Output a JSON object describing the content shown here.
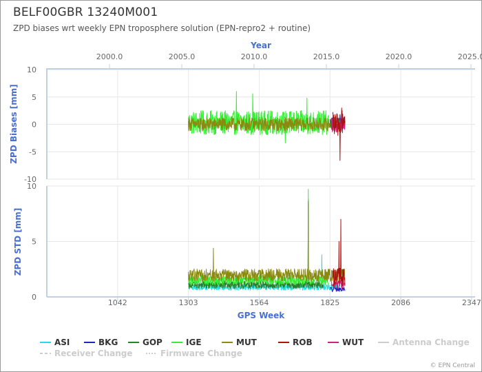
{
  "header": {
    "title": "BELF00GBR 13240M001",
    "subtitle": "ZPD biases wrt weekly EPN troposphere solution (EPN-repro2 + routine)"
  },
  "credit": "© EPN Central",
  "colors": {
    "axis_title": "#4a6fd4",
    "axis_line": "#c0d0e0",
    "grid": "#e6e6e6",
    "tick_text": "#666666"
  },
  "chart_data": [
    {
      "type": "line",
      "name": "ZPD Biases",
      "ylabel": "ZPD Biases [mm]",
      "x2label": "Year",
      "x2ticks": [
        "2000.0",
        "2005.0",
        "2010.0",
        "2015.0",
        "2020.0",
        "2025.0"
      ],
      "xlim": [
        781,
        2360
      ],
      "ylim": [
        -10,
        10
      ],
      "yticks": [
        10,
        5,
        0,
        -5,
        -10
      ],
      "series": [
        {
          "name": "IGE",
          "color": "#33ee33",
          "x_range": [
            1303,
            1820
          ],
          "center": 0.3,
          "amplitude": 2.2,
          "peaks": [
            [
              1480,
              6.0
            ],
            [
              1540,
              5.6
            ],
            [
              1740,
              4.8
            ],
            [
              1660,
              -3.4
            ]
          ]
        },
        {
          "name": "MUT",
          "color": "#8a8a10",
          "x_range": [
            1303,
            1880
          ],
          "center": 0.0,
          "amplitude": 1.2,
          "peaks": []
        },
        {
          "name": "BKG",
          "color": "#2222bb",
          "x_range": [
            1825,
            1880
          ],
          "center": 0.3,
          "amplitude": 0.9,
          "peaks": [
            [
              1862,
              1.8
            ]
          ]
        },
        {
          "name": "GOP",
          "color": "#2a7d2a",
          "x_range": [
            1825,
            1875
          ],
          "center": 0.1,
          "amplitude": 0.8,
          "peaks": []
        },
        {
          "name": "ASI",
          "color": "#22dddd",
          "x_range": [
            1830,
            1860
          ],
          "center": 0.2,
          "amplitude": 0.6,
          "peaks": []
        },
        {
          "name": "WUT",
          "color": "#cc2277",
          "x_range": [
            1830,
            1880
          ],
          "center": 0.0,
          "amplitude": 1.5,
          "peaks": [
            [
              1870,
              2.5
            ]
          ]
        },
        {
          "name": "ROB",
          "color": "#aa1111",
          "x_range": [
            1835,
            1880
          ],
          "center": 0.0,
          "amplitude": 2.2,
          "peaks": [
            [
              1862,
              -6.6
            ],
            [
              1868,
              3.0
            ]
          ]
        }
      ]
    },
    {
      "type": "line",
      "name": "ZPD STD",
      "ylabel": "ZPD STD [mm]",
      "xlabel": "GPS Week",
      "xticks": [
        1042,
        1303,
        1564,
        1825,
        2086,
        2347
      ],
      "xlim": [
        781,
        2360
      ],
      "ylim": [
        0,
        10
      ],
      "yticks": [
        10,
        5,
        0
      ],
      "series": [
        {
          "name": "ASI",
          "color": "#22dddd",
          "x_range": [
            1303,
            1860
          ],
          "center": 0.8,
          "amplitude": 0.4,
          "peaks": [
            [
              1795,
              3.8
            ]
          ]
        },
        {
          "name": "GOP",
          "color": "#2a7d2a",
          "x_range": [
            1303,
            1800
          ],
          "center": 1.0,
          "amplitude": 0.5,
          "peaks": [
            [
              1745,
              8.8
            ]
          ]
        },
        {
          "name": "IGE",
          "color": "#33ee33",
          "x_range": [
            1303,
            1820
          ],
          "center": 1.4,
          "amplitude": 0.6,
          "peaks": [
            [
              1745,
              9.7
            ]
          ]
        },
        {
          "name": "MUT",
          "color": "#8a8a10",
          "x_range": [
            1303,
            1880
          ],
          "center": 1.8,
          "amplitude": 0.8,
          "peaks": [
            [
              1395,
              4.4
            ],
            [
              1745,
              8.6
            ]
          ]
        },
        {
          "name": "BKG",
          "color": "#2222bb",
          "x_range": [
            1825,
            1880
          ],
          "center": 0.6,
          "amplitude": 0.3,
          "peaks": []
        },
        {
          "name": "WUT",
          "color": "#cc2277",
          "x_range": [
            1830,
            1880
          ],
          "center": 1.0,
          "amplitude": 0.6,
          "peaks": []
        },
        {
          "name": "ROB",
          "color": "#aa1111",
          "x_range": [
            1835,
            1880
          ],
          "center": 1.5,
          "amplitude": 1.2,
          "peaks": [
            [
              1865,
              7.0
            ],
            [
              1858,
              5.0
            ]
          ]
        }
      ]
    }
  ],
  "legend": {
    "items": [
      {
        "label": "ASI",
        "color": "#22dddd",
        "style": "solid",
        "active": true
      },
      {
        "label": "BKG",
        "color": "#2222bb",
        "style": "solid",
        "active": true
      },
      {
        "label": "GOP",
        "color": "#2a7d2a",
        "style": "solid",
        "active": true
      },
      {
        "label": "IGE",
        "color": "#33ee33",
        "style": "solid",
        "active": true
      },
      {
        "label": "MUT",
        "color": "#8a8a10",
        "style": "solid",
        "active": true
      },
      {
        "label": "ROB",
        "color": "#aa1111",
        "style": "solid",
        "active": true
      },
      {
        "label": "WUT",
        "color": "#cc2277",
        "style": "solid",
        "active": true
      },
      {
        "label": "Antenna Change",
        "color": "#cccccc",
        "style": "solid",
        "active": false
      },
      {
        "label": "Receiver Change",
        "color": "#cccccc",
        "style": "dashed",
        "active": false
      },
      {
        "label": "Firmware Change",
        "color": "#cccccc",
        "style": "dotted",
        "active": false
      }
    ]
  }
}
